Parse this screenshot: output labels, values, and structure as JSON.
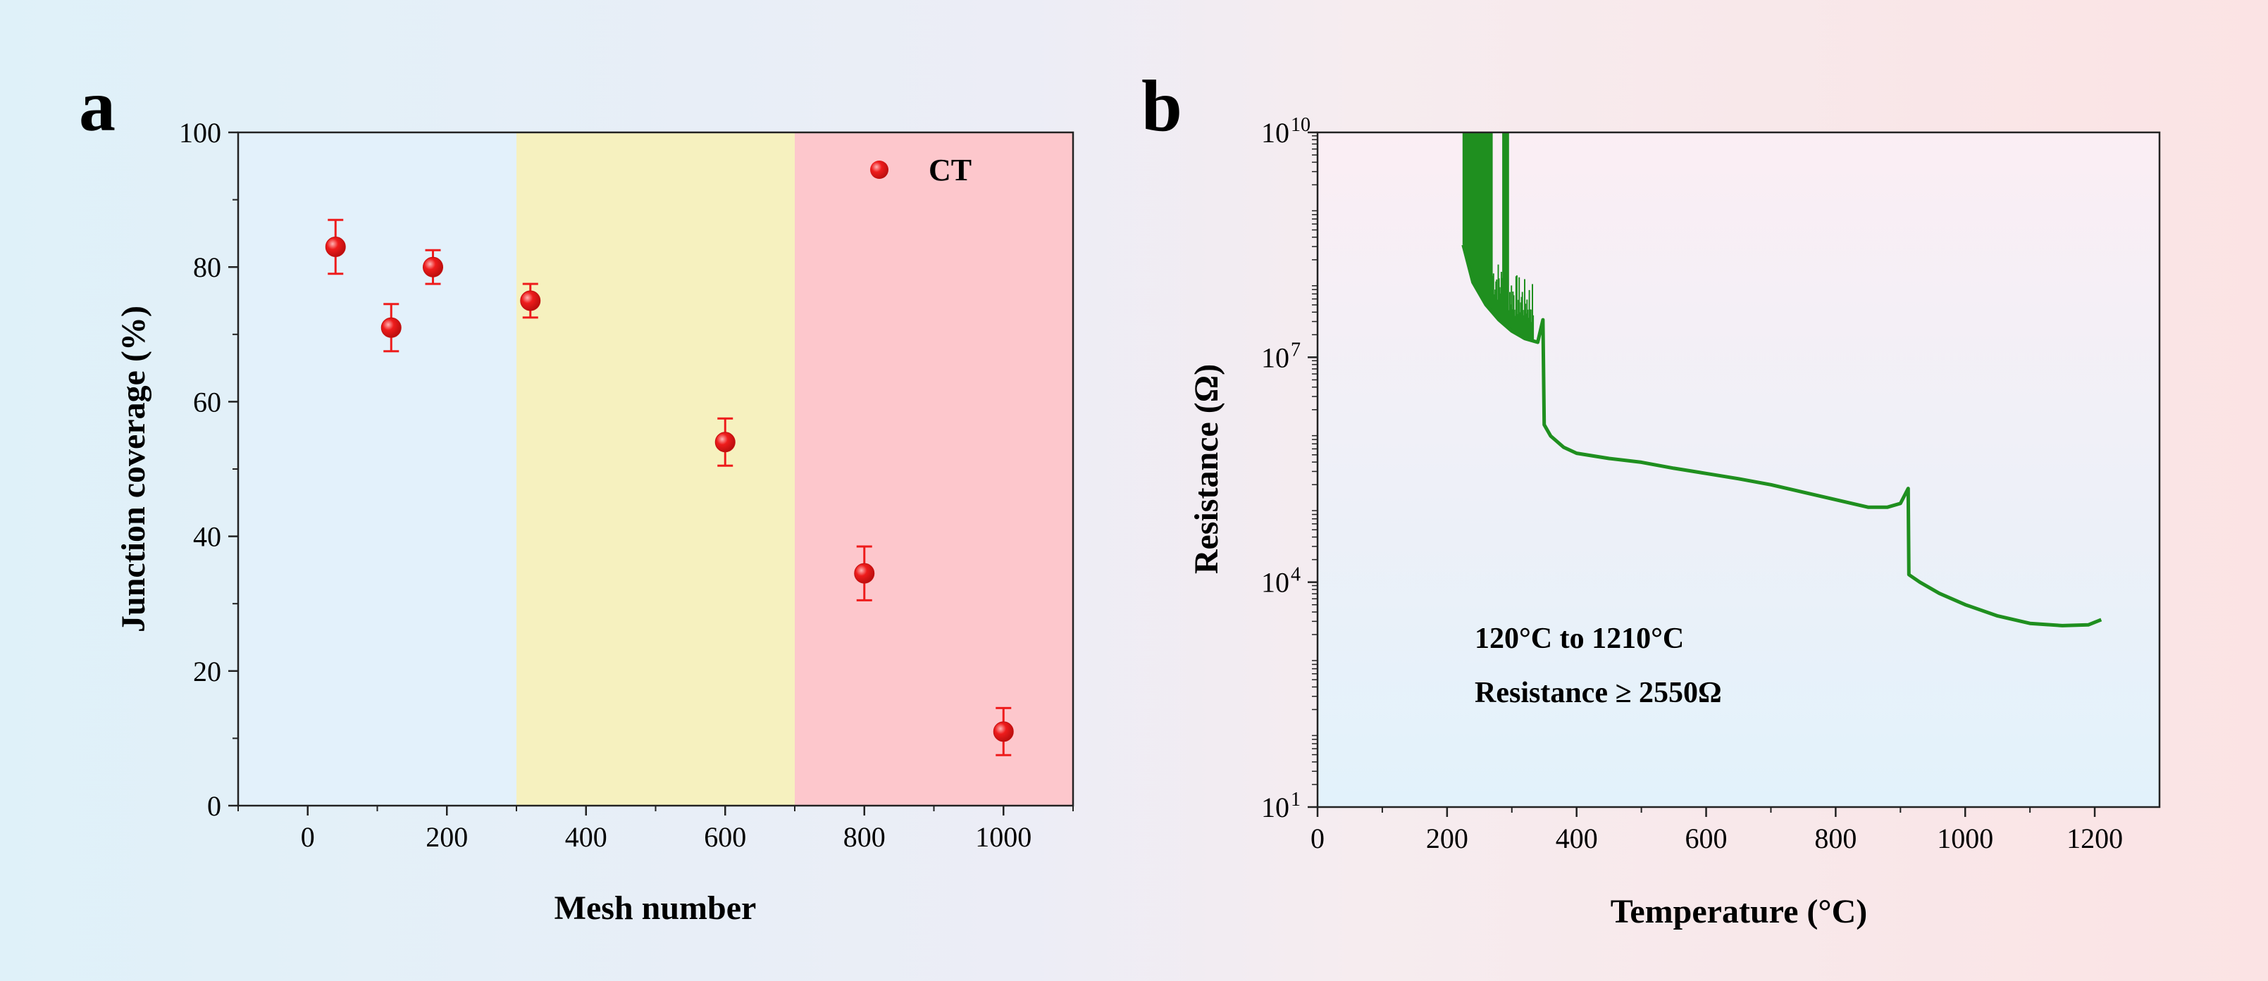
{
  "chart_data": [
    {
      "panel_label": "a",
      "type": "scatter",
      "xlabel": "Mesh number",
      "ylabel": "Junction coverage (%)",
      "xlim": [
        -100,
        1100
      ],
      "ylim": [
        0,
        100
      ],
      "xticks": [
        0,
        200,
        400,
        600,
        800,
        1000
      ],
      "yticks": [
        0,
        20,
        40,
        60,
        80,
        100
      ],
      "regions": [
        {
          "from": -100,
          "to": 300,
          "color": "#e3f1fb"
        },
        {
          "from": 300,
          "to": 700,
          "color": "#f6f1bf"
        },
        {
          "from": 700,
          "to": 1100,
          "color": "#fdc7cc"
        }
      ],
      "series": [
        {
          "name": "CT",
          "color": "#ee1c1c",
          "points": [
            {
              "x": 40,
              "y": 83,
              "err": 4
            },
            {
              "x": 120,
              "y": 71,
              "err": 3.5
            },
            {
              "x": 180,
              "y": 80,
              "err": 2.5
            },
            {
              "x": 320,
              "y": 75,
              "err": 2.5
            },
            {
              "x": 600,
              "y": 54,
              "err": 3.5
            },
            {
              "x": 800,
              "y": 34.5,
              "err": 4
            },
            {
              "x": 1000,
              "y": 11,
              "err": 3.5
            }
          ]
        }
      ],
      "legend": {
        "label": "CT",
        "position": "top-right"
      }
    },
    {
      "panel_label": "b",
      "type": "line",
      "xlabel": "Temperature (°C)",
      "ylabel": "Resistance (Ω)",
      "xlim": [
        0,
        1300
      ],
      "ylim_log10": [
        1,
        10
      ],
      "xticks": [
        0,
        200,
        400,
        600,
        800,
        1000,
        1200
      ],
      "yticks": [
        {
          "base": "10",
          "exp": "1",
          "log10": 1
        },
        {
          "base": "10",
          "exp": "4",
          "log10": 4
        },
        {
          "base": "10",
          "exp": "7",
          "log10": 7
        },
        {
          "base": "10",
          "exp": "10",
          "log10": 10
        }
      ],
      "line_color": "#1f8f1f",
      "series": [
        {
          "name": "Resistance",
          "log10_values": [
            [
              225,
              8.5
            ],
            [
              240,
              8.0
            ],
            [
              260,
              7.7
            ],
            [
              280,
              7.5
            ],
            [
              300,
              7.35
            ],
            [
              320,
              7.25
            ],
            [
              340,
              7.2
            ],
            [
              348,
              7.5
            ],
            [
              350,
              6.1
            ],
            [
              360,
              5.95
            ],
            [
              380,
              5.8
            ],
            [
              400,
              5.72
            ],
            [
              450,
              5.65
            ],
            [
              500,
              5.6
            ],
            [
              550,
              5.52
            ],
            [
              600,
              5.45
            ],
            [
              650,
              5.38
            ],
            [
              700,
              5.3
            ],
            [
              750,
              5.2
            ],
            [
              800,
              5.1
            ],
            [
              850,
              5.0
            ],
            [
              880,
              5.0
            ],
            [
              900,
              5.05
            ],
            [
              912,
              5.25
            ],
            [
              913,
              4.1
            ],
            [
              930,
              4.0
            ],
            [
              960,
              3.85
            ],
            [
              1000,
              3.7
            ],
            [
              1050,
              3.55
            ],
            [
              1100,
              3.45
            ],
            [
              1150,
              3.42
            ],
            [
              1190,
              3.43
            ],
            [
              1210,
              3.5
            ]
          ],
          "noise_band": {
            "x_from": 225,
            "x_to": 348,
            "top_log10": 10
          }
        }
      ],
      "annotations": [
        "120°C to 1210°C",
        "Resistance ≥ 2550Ω"
      ]
    }
  ],
  "colors": {
    "band_blue": "#e2f2fa",
    "band_pink": "#fbe6e6",
    "marker_red": "#ee1c1c",
    "line_green": "#1f8f1f"
  }
}
